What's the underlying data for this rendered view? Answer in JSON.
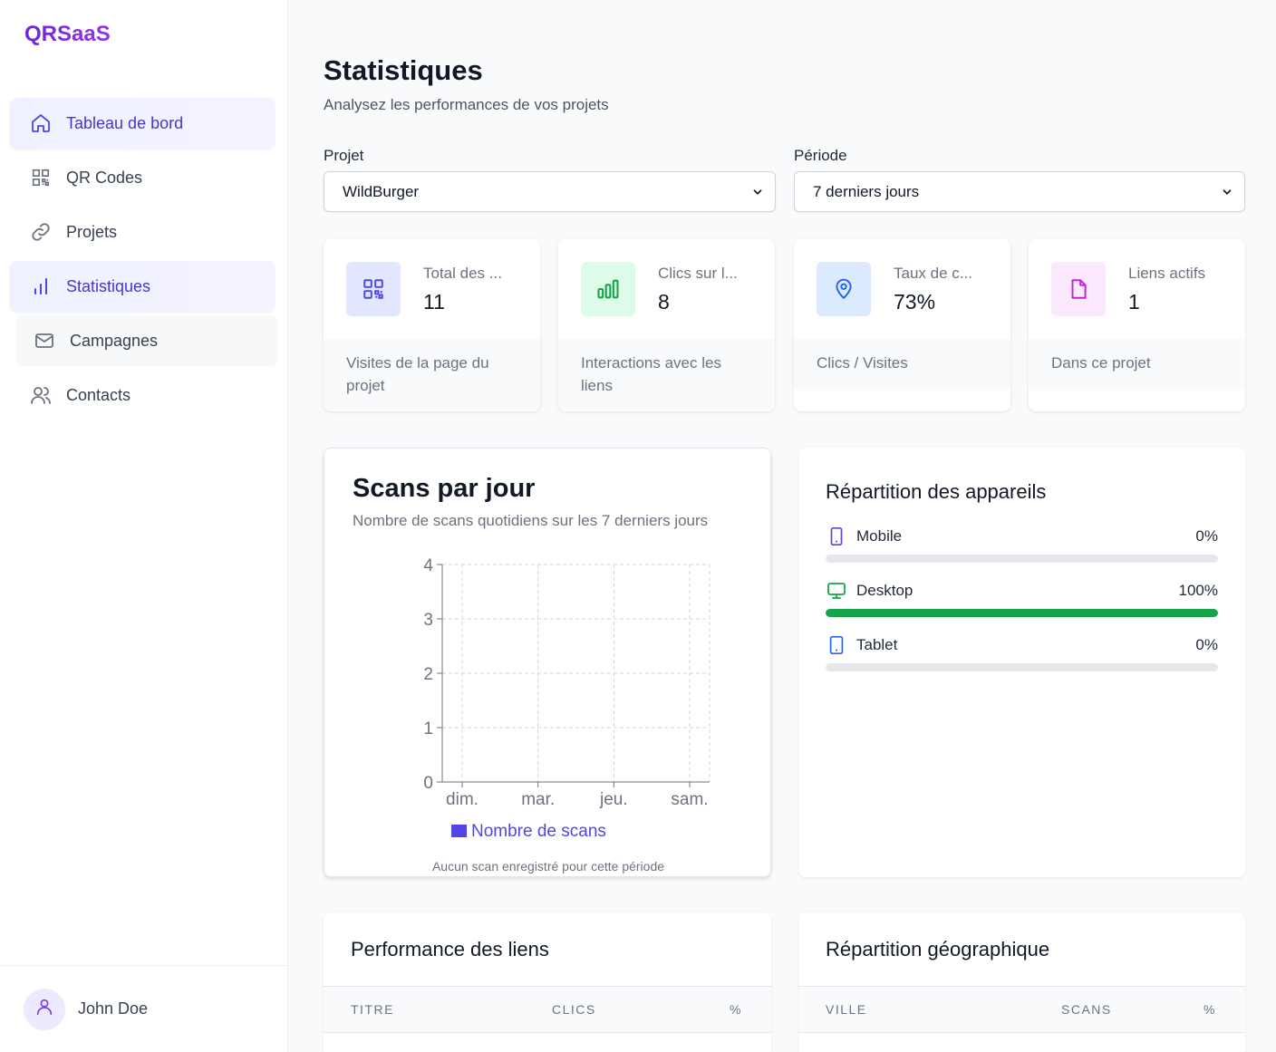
{
  "app": {
    "brand": "QRSaaS"
  },
  "sidebar": {
    "items": [
      {
        "label": "Tableau de bord",
        "icon": "home-icon"
      },
      {
        "label": "QR Codes",
        "icon": "qr-code-icon"
      },
      {
        "label": "Projets",
        "icon": "link-icon"
      },
      {
        "label": "Statistiques",
        "icon": "bar-chart-icon"
      },
      {
        "label": "Campagnes",
        "icon": "mail-icon"
      },
      {
        "label": "Contacts",
        "icon": "users-icon"
      }
    ],
    "user": {
      "name": "John Doe",
      "icon": "user-icon"
    }
  },
  "page": {
    "title": "Statistiques",
    "subtitle": "Analysez les performances de vos projets"
  },
  "filters": {
    "project_label": "Projet",
    "project_value": "WildBurger",
    "period_label": "Période",
    "period_value": "7 derniers jours"
  },
  "kpis": [
    {
      "label": "Total des ...",
      "value": "11",
      "desc": "Visites de la page du projet",
      "icon": "qr-code-icon",
      "color": "#4f46e5",
      "bg": "#e0e7ff"
    },
    {
      "label": "Clics sur l...",
      "value": "8",
      "desc": "Interactions avec les liens",
      "icon": "bar-chart-icon",
      "color": "#16a34a",
      "bg": "#dcfce7"
    },
    {
      "label": "Taux de c...",
      "value": "73%",
      "desc": "Clics / Visites",
      "icon": "map-pin-icon",
      "color": "#2563eb",
      "bg": "#dbeafe"
    },
    {
      "label": "Liens actifs",
      "value": "1",
      "desc": "Dans ce projet",
      "icon": "file-icon",
      "color": "#c026d3",
      "bg": "#fae8ff"
    }
  ],
  "scans_chart": {
    "title": "Scans par jour",
    "subtitle": "Nombre de scans quotidiens sur les 7 derniers jours",
    "empty_message": "Aucun scan enregistré pour cette période"
  },
  "chart_data": {
    "type": "bar",
    "categories": [
      "dim.",
      "mar.",
      "jeu.",
      "sam."
    ],
    "series": [
      {
        "name": "Nombre de scans",
        "values": [
          0,
          0,
          0,
          0
        ],
        "color": "#4f46e5"
      }
    ],
    "yticks": [
      "0",
      "1",
      "2",
      "3",
      "4"
    ],
    "ylim": [
      0,
      4
    ],
    "grid": true,
    "legend": "bottom"
  },
  "devices": {
    "title": "Répartition des appareils",
    "items": [
      {
        "name": "Mobile",
        "percent_label": "0%",
        "fraction": 0,
        "icon": "smartphone-icon",
        "color": "#4f46e5"
      },
      {
        "name": "Desktop",
        "percent_label": "100%",
        "fraction": 1,
        "icon": "monitor-icon",
        "color": "#16a34a"
      },
      {
        "name": "Tablet",
        "percent_label": "0%",
        "fraction": 0,
        "icon": "tablet-icon",
        "color": "#2563eb"
      }
    ]
  },
  "links_table": {
    "title": "Performance des liens",
    "columns": [
      "TITRE",
      "CLICS",
      "%"
    ]
  },
  "geo_table": {
    "title": "Répartition géographique",
    "columns": [
      "VILLE",
      "SCANS",
      "%"
    ]
  }
}
